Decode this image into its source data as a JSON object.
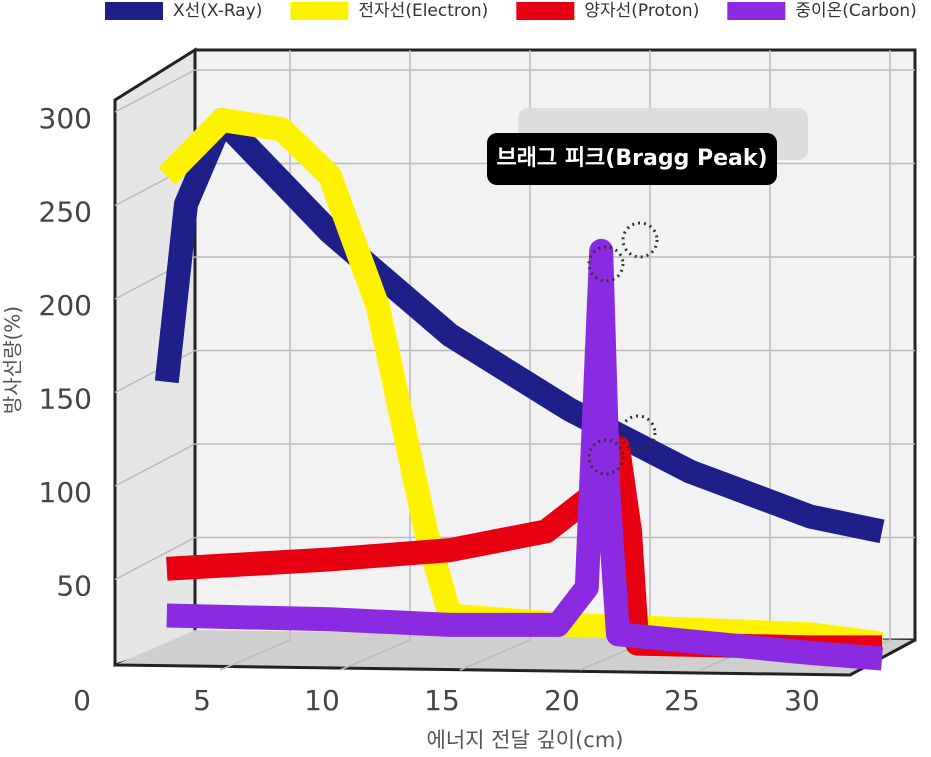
{
  "chart_data": {
    "type": "line",
    "y_label": "방사선량(%)",
    "x_label": "에너지 전달 깊이(cm)",
    "annotation": "브래그 피크(Bragg Peak)",
    "legend": "top",
    "xlim": [
      0,
      33
    ],
    "xticks": [
      0,
      5,
      10,
      15,
      20,
      25,
      30
    ],
    "ylim": [
      0,
      300
    ],
    "yticks": [
      50,
      100,
      150,
      200,
      250,
      300
    ],
    "grid": true,
    "series": [
      {
        "name": "X선(X-Ray)",
        "color": "#1f1f8a",
        "x": [
          3.2,
          4,
          5.5,
          10,
          15,
          20,
          25,
          30,
          33
        ],
        "values": [
          160,
          255,
          300,
          240,
          185,
          145,
          112,
          88,
          80
        ]
      },
      {
        "name": "전자선(Electron)",
        "color": "#fff200",
        "x": [
          3.2,
          5.5,
          8,
          10,
          12,
          14,
          15,
          20,
          30,
          33
        ],
        "values": [
          270,
          300,
          295,
          270,
          200,
          80,
          35,
          30,
          25,
          20
        ]
      },
      {
        "name": "양자선(Proton)",
        "color": "#e60012",
        "x": [
          3.2,
          10,
          15,
          19,
          21,
          22,
          22.5,
          22.8,
          30,
          33
        ],
        "values": [
          60,
          65,
          70,
          80,
          100,
          125,
          80,
          20,
          18,
          18
        ]
      },
      {
        "name": "중이온(Carbon)",
        "color": "#8a2be2",
        "x": [
          3.2,
          10,
          15,
          19.5,
          20.7,
          21.3,
          21.6,
          22,
          30,
          33
        ],
        "values": [
          35,
          33,
          30,
          30,
          50,
          230,
          100,
          25,
          15,
          12
        ]
      }
    ]
  }
}
